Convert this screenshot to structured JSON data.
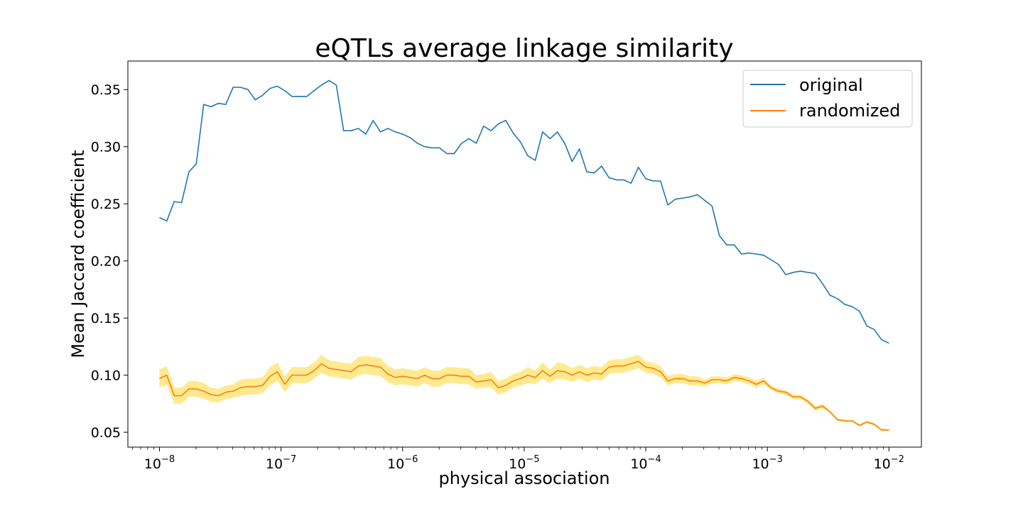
{
  "chart_data": {
    "type": "line",
    "title": "eQTLs average linkage similarity",
    "xlabel": "physical association",
    "ylabel": "Mean Jaccard coefficient",
    "x_scale": "log",
    "xlim": [
      5.5e-09,
      0.0185
    ],
    "ylim": [
      0.037,
      0.375
    ],
    "x_ticks": [
      {
        "value": 1e-08,
        "base": "10",
        "exp": "−8"
      },
      {
        "value": 1e-07,
        "base": "10",
        "exp": "−7"
      },
      {
        "value": 1e-06,
        "base": "10",
        "exp": "−6"
      },
      {
        "value": 1e-05,
        "base": "10",
        "exp": "−5"
      },
      {
        "value": 0.0001,
        "base": "10",
        "exp": "−4"
      },
      {
        "value": 0.001,
        "base": "10",
        "exp": "−3"
      },
      {
        "value": 0.01,
        "base": "10",
        "exp": "−2"
      }
    ],
    "y_ticks": [
      {
        "value": 0.05,
        "label": "0.05"
      },
      {
        "value": 0.1,
        "label": "0.10"
      },
      {
        "value": 0.15,
        "label": "0.15"
      },
      {
        "value": 0.2,
        "label": "0.20"
      },
      {
        "value": 0.25,
        "label": "0.25"
      },
      {
        "value": 0.3,
        "label": "0.30"
      },
      {
        "value": 0.35,
        "label": "0.35"
      }
    ],
    "grid": false,
    "legend_position": "top-right",
    "x_log_start": -8,
    "x_log_end": -2,
    "series": [
      {
        "name": "original",
        "color": "#1f77b4",
        "values": [
          0.238,
          0.235,
          0.252,
          0.251,
          0.278,
          0.285,
          0.337,
          0.335,
          0.338,
          0.337,
          0.352,
          0.352,
          0.35,
          0.341,
          0.345,
          0.351,
          0.353,
          0.349,
          0.344,
          0.344,
          0.344,
          0.349,
          0.354,
          0.358,
          0.354,
          0.314,
          0.314,
          0.316,
          0.311,
          0.323,
          0.313,
          0.316,
          0.313,
          0.311,
          0.308,
          0.303,
          0.3,
          0.299,
          0.299,
          0.294,
          0.294,
          0.303,
          0.307,
          0.303,
          0.318,
          0.314,
          0.32,
          0.323,
          0.312,
          0.304,
          0.292,
          0.288,
          0.313,
          0.307,
          0.313,
          0.303,
          0.287,
          0.298,
          0.278,
          0.277,
          0.283,
          0.273,
          0.271,
          0.271,
          0.268,
          0.282,
          0.272,
          0.27,
          0.27,
          0.249,
          0.254,
          0.255,
          0.256,
          0.258,
          0.253,
          0.248,
          0.222,
          0.214,
          0.214,
          0.206,
          0.207,
          0.206,
          0.205,
          0.201,
          0.197,
          0.188,
          0.19,
          0.191,
          0.19,
          0.189,
          0.18,
          0.17,
          0.167,
          0.162,
          0.16,
          0.156,
          0.143,
          0.14,
          0.131,
          0.128
        ]
      },
      {
        "name": "randomized",
        "color": "#ff7f0e",
        "band_color": "#ffe36b",
        "values": [
          0.097,
          0.1,
          0.082,
          0.082,
          0.088,
          0.088,
          0.086,
          0.083,
          0.082,
          0.085,
          0.086,
          0.089,
          0.09,
          0.09,
          0.091,
          0.099,
          0.103,
          0.092,
          0.1,
          0.1,
          0.1,
          0.104,
          0.11,
          0.106,
          0.105,
          0.104,
          0.103,
          0.108,
          0.109,
          0.108,
          0.107,
          0.101,
          0.098,
          0.099,
          0.098,
          0.097,
          0.1,
          0.097,
          0.097,
          0.1,
          0.1,
          0.099,
          0.099,
          0.094,
          0.095,
          0.096,
          0.089,
          0.091,
          0.095,
          0.097,
          0.1,
          0.098,
          0.104,
          0.099,
          0.104,
          0.103,
          0.1,
          0.103,
          0.1,
          0.102,
          0.101,
          0.107,
          0.108,
          0.108,
          0.11,
          0.112,
          0.107,
          0.106,
          0.103,
          0.095,
          0.097,
          0.097,
          0.095,
          0.095,
          0.093,
          0.096,
          0.096,
          0.095,
          0.098,
          0.097,
          0.095,
          0.092,
          0.095,
          0.089,
          0.086,
          0.085,
          0.081,
          0.081,
          0.077,
          0.071,
          0.073,
          0.068,
          0.061,
          0.06,
          0.06,
          0.056,
          0.059,
          0.057,
          0.052,
          0.052
        ],
        "band_lower": [
          0.089,
          0.092,
          0.075,
          0.075,
          0.081,
          0.081,
          0.079,
          0.077,
          0.076,
          0.079,
          0.08,
          0.082,
          0.083,
          0.083,
          0.084,
          0.091,
          0.095,
          0.085,
          0.093,
          0.093,
          0.093,
          0.097,
          0.102,
          0.099,
          0.098,
          0.097,
          0.096,
          0.1,
          0.101,
          0.1,
          0.099,
          0.094,
          0.091,
          0.092,
          0.091,
          0.09,
          0.093,
          0.09,
          0.09,
          0.093,
          0.093,
          0.092,
          0.092,
          0.088,
          0.089,
          0.089,
          0.083,
          0.085,
          0.089,
          0.091,
          0.093,
          0.092,
          0.097,
          0.093,
          0.097,
          0.096,
          0.094,
          0.097,
          0.094,
          0.096,
          0.095,
          0.101,
          0.102,
          0.102,
          0.104,
          0.106,
          0.102,
          0.101,
          0.098,
          0.091,
          0.093,
          0.093,
          0.091,
          0.091,
          0.09,
          0.093,
          0.093,
          0.092,
          0.095,
          0.094,
          0.092,
          0.089,
          0.092,
          0.087,
          0.084,
          0.083,
          0.079,
          0.079,
          0.075,
          0.069,
          0.071,
          0.067,
          0.06,
          0.059,
          0.059,
          0.055,
          0.058,
          0.056,
          0.051,
          0.051
        ],
        "band_upper": [
          0.105,
          0.108,
          0.089,
          0.089,
          0.095,
          0.095,
          0.093,
          0.089,
          0.088,
          0.091,
          0.092,
          0.096,
          0.097,
          0.097,
          0.098,
          0.107,
          0.111,
          0.099,
          0.107,
          0.107,
          0.107,
          0.111,
          0.118,
          0.113,
          0.112,
          0.111,
          0.11,
          0.116,
          0.117,
          0.116,
          0.115,
          0.108,
          0.105,
          0.106,
          0.105,
          0.104,
          0.107,
          0.104,
          0.104,
          0.107,
          0.107,
          0.106,
          0.106,
          0.1,
          0.101,
          0.103,
          0.095,
          0.097,
          0.101,
          0.103,
          0.107,
          0.104,
          0.111,
          0.105,
          0.111,
          0.11,
          0.106,
          0.109,
          0.106,
          0.108,
          0.107,
          0.113,
          0.114,
          0.114,
          0.116,
          0.118,
          0.112,
          0.111,
          0.108,
          0.099,
          0.101,
          0.101,
          0.099,
          0.099,
          0.096,
          0.099,
          0.099,
          0.098,
          0.101,
          0.1,
          0.098,
          0.095,
          0.098,
          0.091,
          0.088,
          0.087,
          0.083,
          0.083,
          0.079,
          0.073,
          0.075,
          0.069,
          0.062,
          0.061,
          0.061,
          0.057,
          0.06,
          0.058,
          0.053,
          0.053
        ]
      }
    ]
  }
}
